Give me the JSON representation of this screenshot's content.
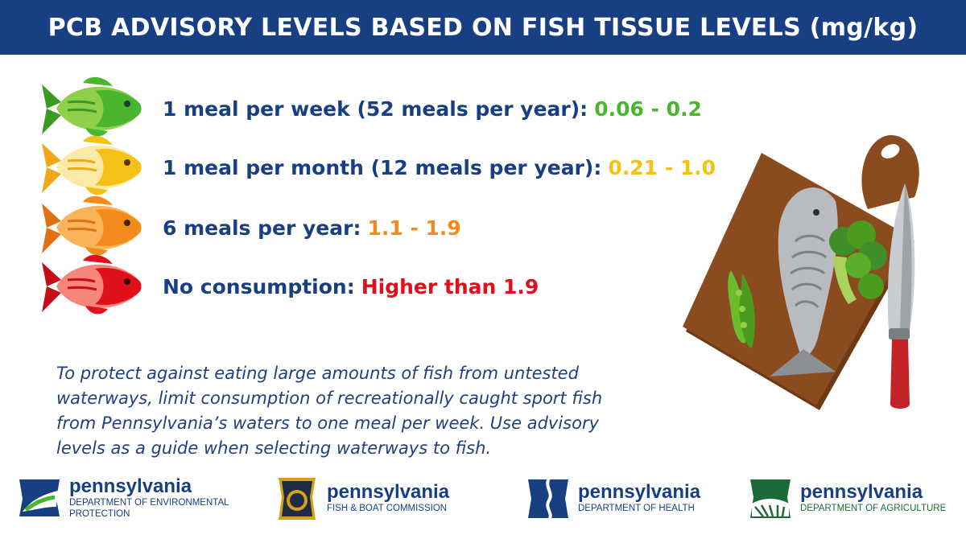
{
  "title": "PCB ADVISORY LEVELS BASED ON FISH TISSUE LEVELS (mg/kg)",
  "colors": {
    "header": "#173f82",
    "text": "#173f82",
    "green": "#4ab52e",
    "yellow": "#f5c116",
    "orange": "#f38a1c",
    "red": "#e0101a"
  },
  "levels": [
    {
      "label": "1 meal per week (52 meals per year):",
      "value": "0.06 - 0.2",
      "color": "#4ab52e",
      "icon": "fish-green-icon"
    },
    {
      "label": "1 meal per month (12 meals per year):",
      "value": "0.21 - 1.0",
      "color": "#f5c116",
      "icon": "fish-yellow-icon"
    },
    {
      "label": "6 meals per year:",
      "value": "1.1 - 1.9",
      "color": "#f38a1c",
      "icon": "fish-orange-icon"
    },
    {
      "label": "No consumption:",
      "value": "Higher than 1.9",
      "color": "#e0101a",
      "icon": "fish-red-icon"
    }
  ],
  "note": "To protect against eating large amounts of fish from untested waterways, limit consumption of recreationally caught sport fish from Pennsylvania’s waters to one meal per week. Use advisory levels as a guide when selecting waterways to fish.",
  "illustration": "cutting-board-fish-knife-broccoli-peas",
  "logos": [
    {
      "brand": "pennsylvania",
      "dept": "DEPARTMENT OF ENVIRONMENTAL PROTECTION"
    },
    {
      "brand": "pennsylvania",
      "dept": "FISH & BOAT COMMISSION"
    },
    {
      "brand": "pennsylvania",
      "dept": "DEPARTMENT OF HEALTH"
    },
    {
      "brand": "pennsylvania",
      "dept": "DEPARTMENT OF AGRICULTURE"
    }
  ]
}
